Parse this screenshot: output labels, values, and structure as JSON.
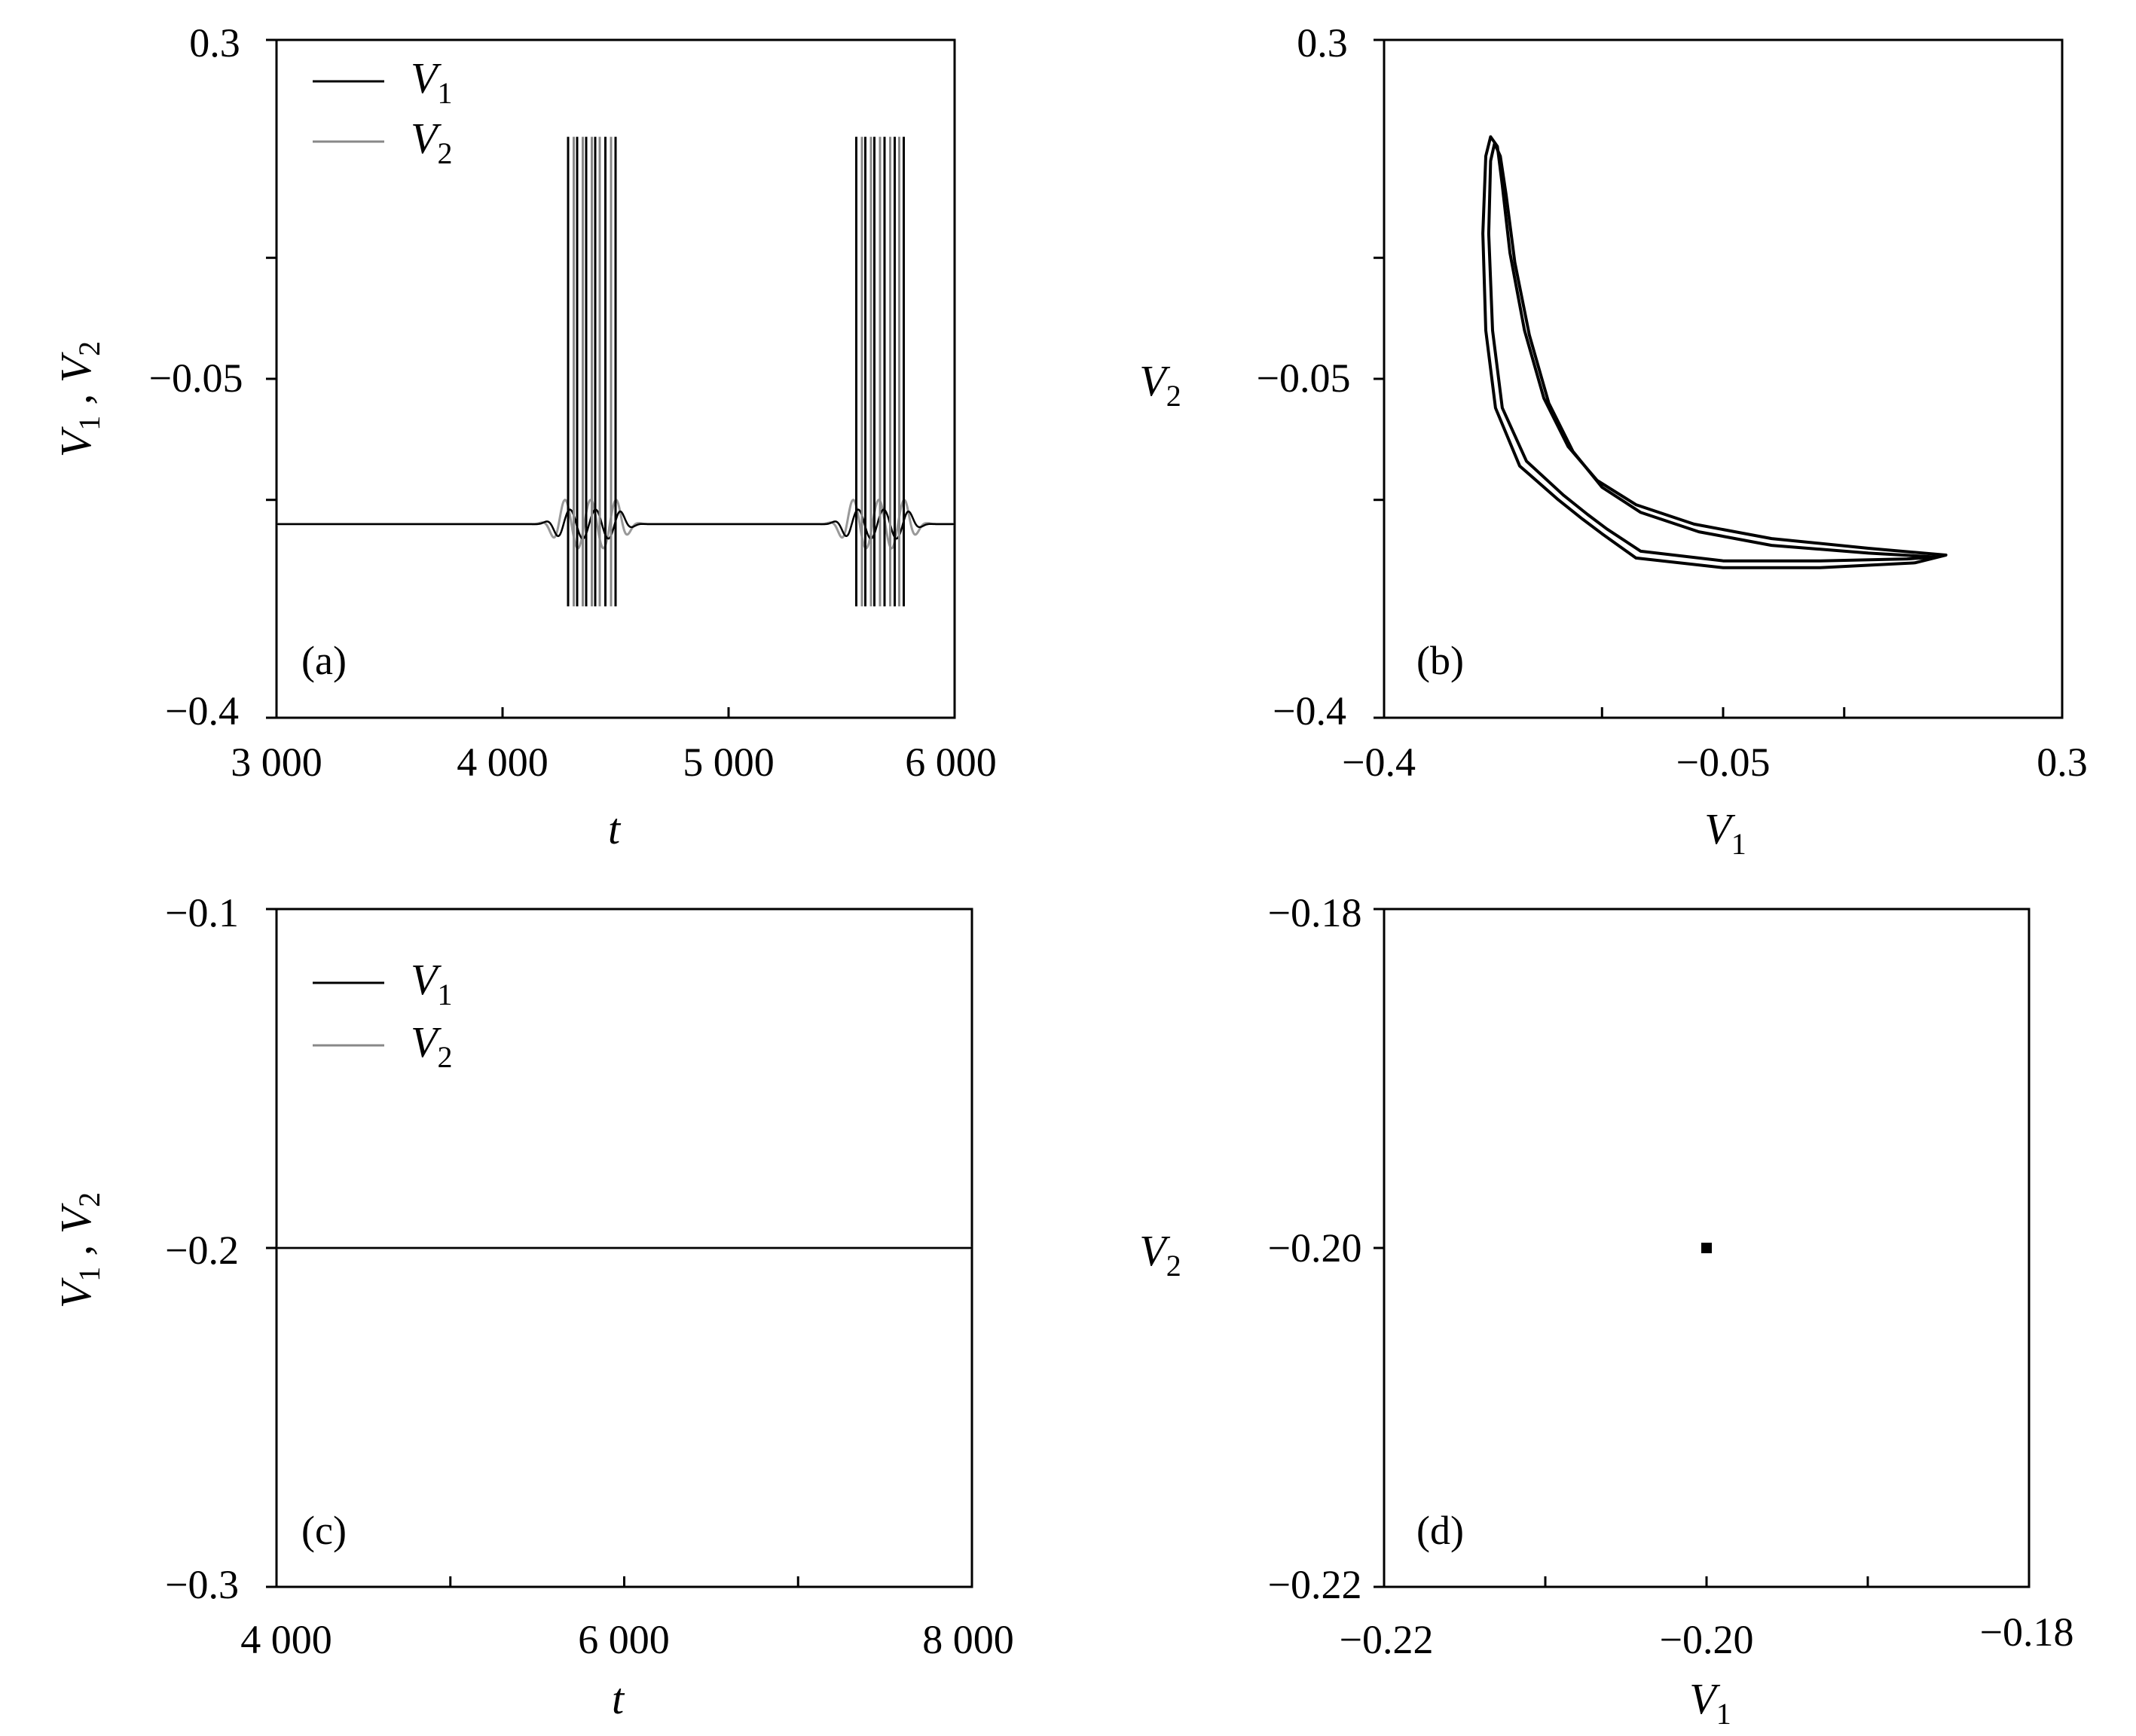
{
  "chart_data": [
    {
      "panel": "(a)",
      "type": "line",
      "xlabel": "t",
      "ylabel": "V1 , V2",
      "xlim": [
        3000,
        6000
      ],
      "ylim": [
        -0.4,
        0.3
      ],
      "xticks": [
        "3 000",
        "4 000",
        "5 000",
        "6 000"
      ],
      "yticks": [
        "0.3",
        "-0.05",
        "-0.4"
      ],
      "legend": [
        "V1",
        "V2"
      ],
      "rest_level": -0.2,
      "spike_top": 0.2,
      "spike_bottom": -0.285,
      "bursts": [
        {
          "start": 4270,
          "end": 4500,
          "v1_spikes": [
            4290,
            4330,
            4370,
            4410,
            4455,
            4500
          ],
          "v2_spikes": [
            4315,
            4355,
            4395,
            4430,
            4480
          ]
        },
        {
          "start": 5545,
          "end": 5775,
          "v1_spikes": [
            5565,
            5605,
            5645,
            5690,
            5735,
            5775
          ],
          "v2_spikes": [
            5590,
            5630,
            5670,
            5715,
            5755
          ]
        }
      ],
      "series": [
        {
          "name": "V1",
          "color": "#000000"
        },
        {
          "name": "V2",
          "color": "#888888"
        }
      ]
    },
    {
      "panel": "(b)",
      "type": "line",
      "xlabel": "V1",
      "ylabel": "V2",
      "xlim": [
        -0.4,
        0.3
      ],
      "ylim": [
        -0.4,
        0.3
      ],
      "xticks": [
        "-0.4",
        "-0.05",
        "0.3"
      ],
      "yticks": [
        "0.3",
        "-0.05",
        "-0.4"
      ],
      "loops": [
        [
          [
            -0.29,
            0.2
          ],
          [
            -0.283,
            0.19
          ],
          [
            -0.278,
            0.15
          ],
          [
            -0.27,
            0.08
          ],
          [
            -0.255,
            0.0
          ],
          [
            -0.235,
            -0.07
          ],
          [
            -0.21,
            -0.12
          ],
          [
            -0.18,
            -0.155
          ],
          [
            -0.14,
            -0.18
          ],
          [
            -0.08,
            -0.2
          ],
          [
            0.0,
            -0.215
          ],
          [
            0.1,
            -0.225
          ],
          [
            0.18,
            -0.232
          ],
          [
            0.148,
            -0.24
          ],
          [
            0.05,
            -0.245
          ],
          [
            -0.05,
            -0.245
          ],
          [
            -0.14,
            -0.235
          ],
          [
            -0.175,
            -0.21
          ],
          [
            -0.195,
            -0.195
          ],
          [
            -0.22,
            -0.175
          ],
          [
            -0.26,
            -0.14
          ],
          [
            -0.285,
            -0.08
          ],
          [
            -0.295,
            0.0
          ],
          [
            -0.298,
            0.1
          ],
          [
            -0.295,
            0.18
          ],
          [
            -0.29,
            0.2
          ]
        ],
        [
          [
            -0.286,
            0.193
          ],
          [
            -0.28,
            0.18
          ],
          [
            -0.274,
            0.14
          ],
          [
            -0.265,
            0.07
          ],
          [
            -0.25,
            -0.005
          ],
          [
            -0.23,
            -0.075
          ],
          [
            -0.205,
            -0.125
          ],
          [
            -0.175,
            -0.162
          ],
          [
            -0.135,
            -0.188
          ],
          [
            -0.075,
            -0.208
          ],
          [
            0.0,
            -0.222
          ],
          [
            0.1,
            -0.23
          ],
          [
            0.17,
            -0.234
          ],
          [
            0.14,
            -0.236
          ],
          [
            0.05,
            -0.238
          ],
          [
            -0.05,
            -0.238
          ],
          [
            -0.135,
            -0.228
          ],
          [
            -0.17,
            -0.205
          ],
          [
            -0.19,
            -0.19
          ],
          [
            -0.215,
            -0.17
          ],
          [
            -0.253,
            -0.135
          ],
          [
            -0.278,
            -0.08
          ],
          [
            -0.288,
            0.0
          ],
          [
            -0.292,
            0.1
          ],
          [
            -0.29,
            0.175
          ],
          [
            -0.286,
            0.193
          ]
        ]
      ],
      "series": [
        {
          "name": "V1 vs V2",
          "color": "#000000"
        }
      ]
    },
    {
      "panel": "(c)",
      "type": "line",
      "xlabel": "t",
      "ylabel": "V1 , V2",
      "xlim": [
        4000,
        8000
      ],
      "ylim": [
        -0.3,
        -0.1
      ],
      "xticks": [
        "4 000",
        "6 000",
        "8 000"
      ],
      "yticks": [
        "-0.1",
        "-0.2",
        "-0.3"
      ],
      "legend": [
        "V1",
        "V2"
      ],
      "constant_value": -0.2,
      "series": [
        {
          "name": "V1",
          "color": "#000000"
        },
        {
          "name": "V2",
          "color": "#888888"
        }
      ]
    },
    {
      "panel": "(d)",
      "type": "scatter",
      "xlabel": "V1",
      "ylabel": "V2",
      "xlim": [
        -0.22,
        -0.18
      ],
      "ylim": [
        -0.22,
        -0.18
      ],
      "xticks": [
        "-0.22",
        "-0.20",
        "-0.18"
      ],
      "yticks": [
        "-0.18",
        "-0.20",
        "-0.22"
      ],
      "points": [
        {
          "x": -0.2,
          "y": -0.2
        }
      ]
    }
  ]
}
